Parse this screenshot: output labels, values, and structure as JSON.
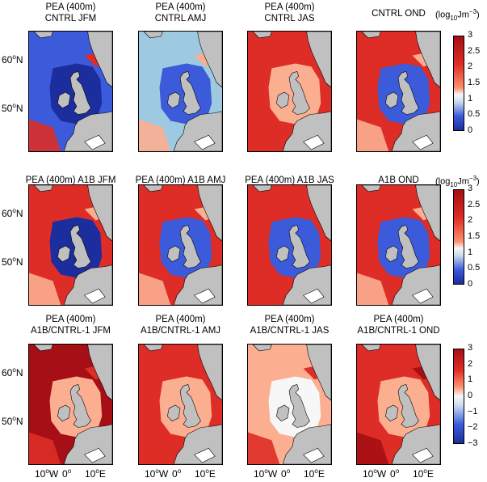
{
  "rows": [
    {
      "titles": [
        [
          "PEA (400m)",
          "CNTRL JFM"
        ],
        [
          "PEA (400m)",
          "CNTRL AMJ"
        ],
        [
          "PEA (400m)",
          "CNTRL JAS"
        ],
        [
          "CNTRL OND"
        ]
      ],
      "colorbar": {
        "unit": "(log10Jm−3)",
        "ticks": [
          "3",
          "2.5",
          "2",
          "1.5",
          "1",
          "0.5",
          "0"
        ]
      }
    },
    {
      "titles": [
        [
          "PEA (400m) A1B JFM"
        ],
        [
          "PEA (400m) A1B AMJ"
        ],
        [
          "PEA (400m) A1B JAS"
        ],
        [
          "A1B OND"
        ]
      ],
      "colorbar": {
        "unit": "(log10Jm−3)",
        "ticks": [
          "3",
          "2.5",
          "2",
          "1.5",
          "1",
          "0.5",
          "0"
        ]
      }
    },
    {
      "titles": [
        [
          "PEA (400m)",
          "A1B/CNTRL-1 JFM"
        ],
        [
          "PEA (400m)",
          "A1B/CNTRL-1 AMJ"
        ],
        [
          "PEA (400m)",
          "A1B/CNTRL-1 JAS"
        ],
        [
          "PEA (400m)",
          "A1B/CNTRL-1 OND"
        ]
      ],
      "colorbar": {
        "unit": "",
        "ticks": [
          "3",
          "2",
          "1",
          "0",
          "−1",
          "−2",
          "−3"
        ]
      }
    }
  ],
  "lat_labels": [
    "60oN",
    "50oN"
  ],
  "lon_labels": [
    "10oW",
    "0o",
    "10oE"
  ],
  "colors": {
    "land": "#c0c0c0",
    "deep_red": "#a50f15",
    "red": "#de2d26",
    "pink": "#fcae91",
    "white": "#f7f7f7",
    "light_blue": "#9ecae1",
    "blue": "#3b5bdb",
    "dark_blue": "#1c2d9e"
  }
}
